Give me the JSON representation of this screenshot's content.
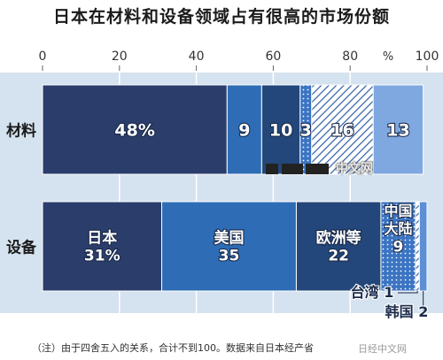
{
  "title": "日本在材料和设备领域占有很高的市场份额",
  "note": "（注）由于四舍五入的关系，合计不到100。数据来自日本经产省",
  "watermark": {
    "text": "中文网",
    "bottom_text": "日经中文网"
  },
  "colors": {
    "japan": "#2b3d6b",
    "usa": "#2e6db5",
    "europe": "#23477a",
    "china": "#3b74c2",
    "taiwan": "#6a97d6",
    "korea": "#5b8fd6",
    "other": "#7fa8e0",
    "background": "#d5e2ef",
    "gridline": "#ffffff"
  },
  "chart_data": {
    "type": "bar",
    "orientation": "horizontal",
    "stacked": true,
    "unit_label": "%",
    "xlim": [
      0,
      100
    ],
    "x_ticks": [
      0,
      20,
      40,
      60,
      80,
      100
    ],
    "grid": true,
    "categories": [
      "材料",
      "设备"
    ],
    "bars": [
      {
        "category": "材料",
        "segments": [
          {
            "key": "japan",
            "value": 48,
            "label": "48%",
            "pattern": "solid"
          },
          {
            "key": "usa",
            "value": 9,
            "label": "9",
            "pattern": "solid"
          },
          {
            "key": "europe",
            "value": 10,
            "label": "10",
            "pattern": "solid"
          },
          {
            "key": "china",
            "value": 3,
            "label": "3",
            "pattern": "dots"
          },
          {
            "key": "taiwan",
            "value": 16,
            "label": "16",
            "pattern": "hatch"
          },
          {
            "key": "other",
            "value": 13,
            "label": "13",
            "pattern": "solid"
          }
        ]
      },
      {
        "category": "设备",
        "segments": [
          {
            "key": "japan",
            "value": 31,
            "label": "日本\n31%",
            "pattern": "solid"
          },
          {
            "key": "usa",
            "value": 35,
            "label": "美国\n35",
            "pattern": "solid"
          },
          {
            "key": "europe",
            "value": 22,
            "label": "欧洲等\n22",
            "pattern": "solid"
          },
          {
            "key": "china",
            "value": 9,
            "label": "9",
            "pattern": "dots"
          },
          {
            "key": "taiwan",
            "value": 1,
            "label": "",
            "pattern": "hatch"
          },
          {
            "key": "korea",
            "value": 2,
            "label": "",
            "pattern": "solid"
          }
        ]
      }
    ],
    "annotations": [
      {
        "text": "中国\n大陆",
        "for": "china"
      },
      {
        "text": "台湾 1",
        "for": "taiwan"
      },
      {
        "text": "韩国 2",
        "for": "korea"
      }
    ]
  }
}
